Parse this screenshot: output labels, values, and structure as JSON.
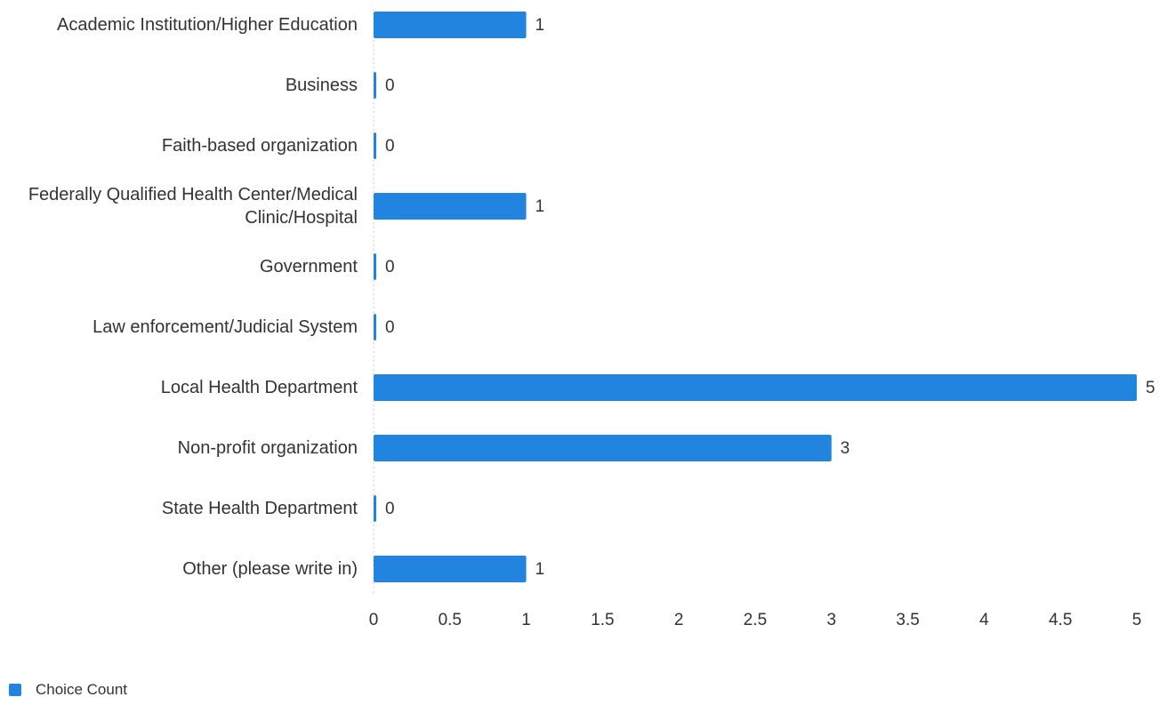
{
  "chart_data": {
    "type": "bar",
    "orientation": "horizontal",
    "categories": [
      "Academic Institution/Higher Education",
      "Business",
      "Faith-based organization",
      "Federally Qualified Health Center/Medical Clinic/Hospital",
      "Government",
      "Law enforcement/Judicial System",
      "Local Health Department",
      "Non-profit organization",
      "State Health Department",
      "Other (please write in)"
    ],
    "series": [
      {
        "name": "Choice Count",
        "color": "#2185e0",
        "values": [
          1,
          0,
          0,
          1,
          0,
          0,
          5,
          3,
          0,
          1
        ]
      }
    ],
    "xlim": [
      0,
      5
    ],
    "xticks": [
      0,
      0.5,
      1,
      1.5,
      2,
      2.5,
      3,
      3.5,
      4,
      4.5,
      5
    ],
    "grid": false,
    "legend": "bottom-left"
  }
}
